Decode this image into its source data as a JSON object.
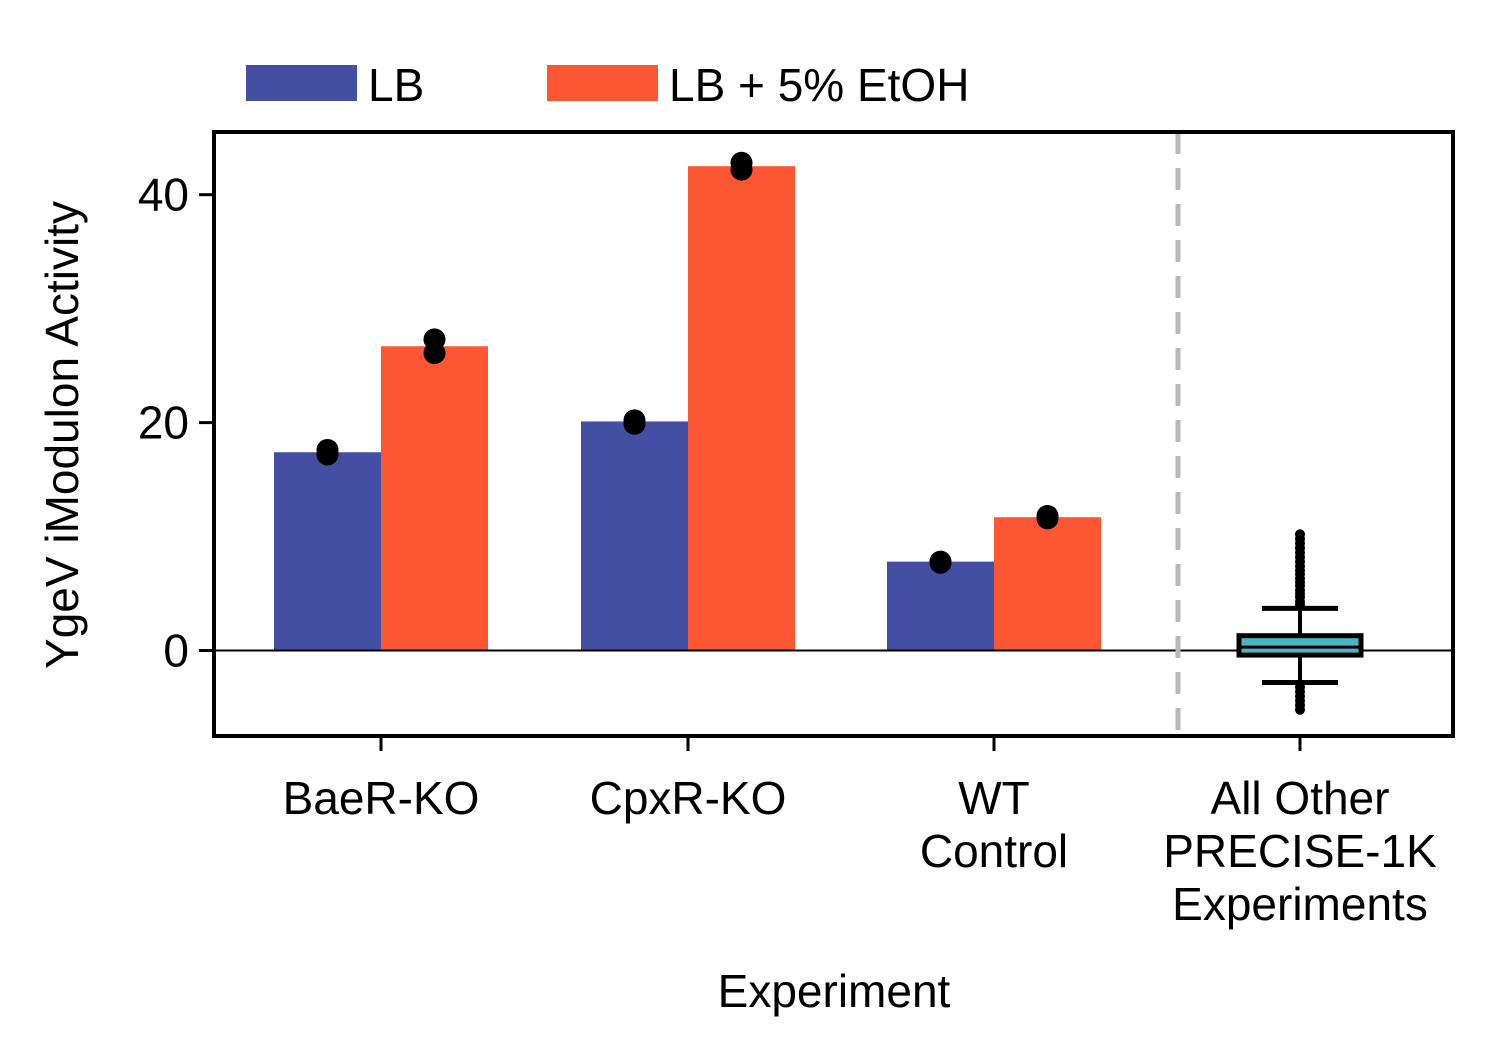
{
  "chart_data": {
    "type": "bar",
    "categories": [
      "BaeR-KO",
      "CpxR-KO",
      "WT\nControl"
    ],
    "series": [
      {
        "name": "LB",
        "color": "#424FA3",
        "values": [
          17.4,
          20.1,
          7.8
        ],
        "replicates": [
          [
            17.2,
            17.6
          ],
          [
            19.9,
            20.2
          ],
          [
            7.7,
            7.8
          ]
        ]
      },
      {
        "name": "LB + 5% EtOH",
        "color": "#FC5633",
        "values": [
          26.7,
          42.5,
          11.7
        ],
        "replicates": [
          [
            26.1,
            27.3
          ],
          [
            42.2,
            42.8
          ],
          [
            11.6,
            11.8
          ]
        ]
      }
    ],
    "boxplot": {
      "category": "All Other\nPRECISE-1K\nExperiments",
      "color": "#4BB5C6",
      "q1": -0.4,
      "median": 0.3,
      "q3": 1.3,
      "whisker_low": -2.8,
      "whisker_high": 3.7,
      "outliers_high": [
        4.0,
        4.3,
        4.7,
        5.0,
        5.3,
        5.7,
        6.0,
        6.3,
        6.7,
        7.0,
        7.4,
        7.8,
        8.2,
        8.6,
        9.0,
        9.4,
        9.8,
        10.2
      ],
      "outliers_low": [
        -3.2,
        -3.6,
        -4.0,
        -4.4,
        -4.8,
        -5.2
      ]
    },
    "xlabel": "Experiment",
    "ylabel": "YgeV iModulon Activity",
    "ylim": [
      -7.5,
      45.5
    ],
    "yticks": [
      0,
      20,
      40
    ],
    "divider_color": "#B8B8BE",
    "legend_position": "top-left, outside plot"
  }
}
